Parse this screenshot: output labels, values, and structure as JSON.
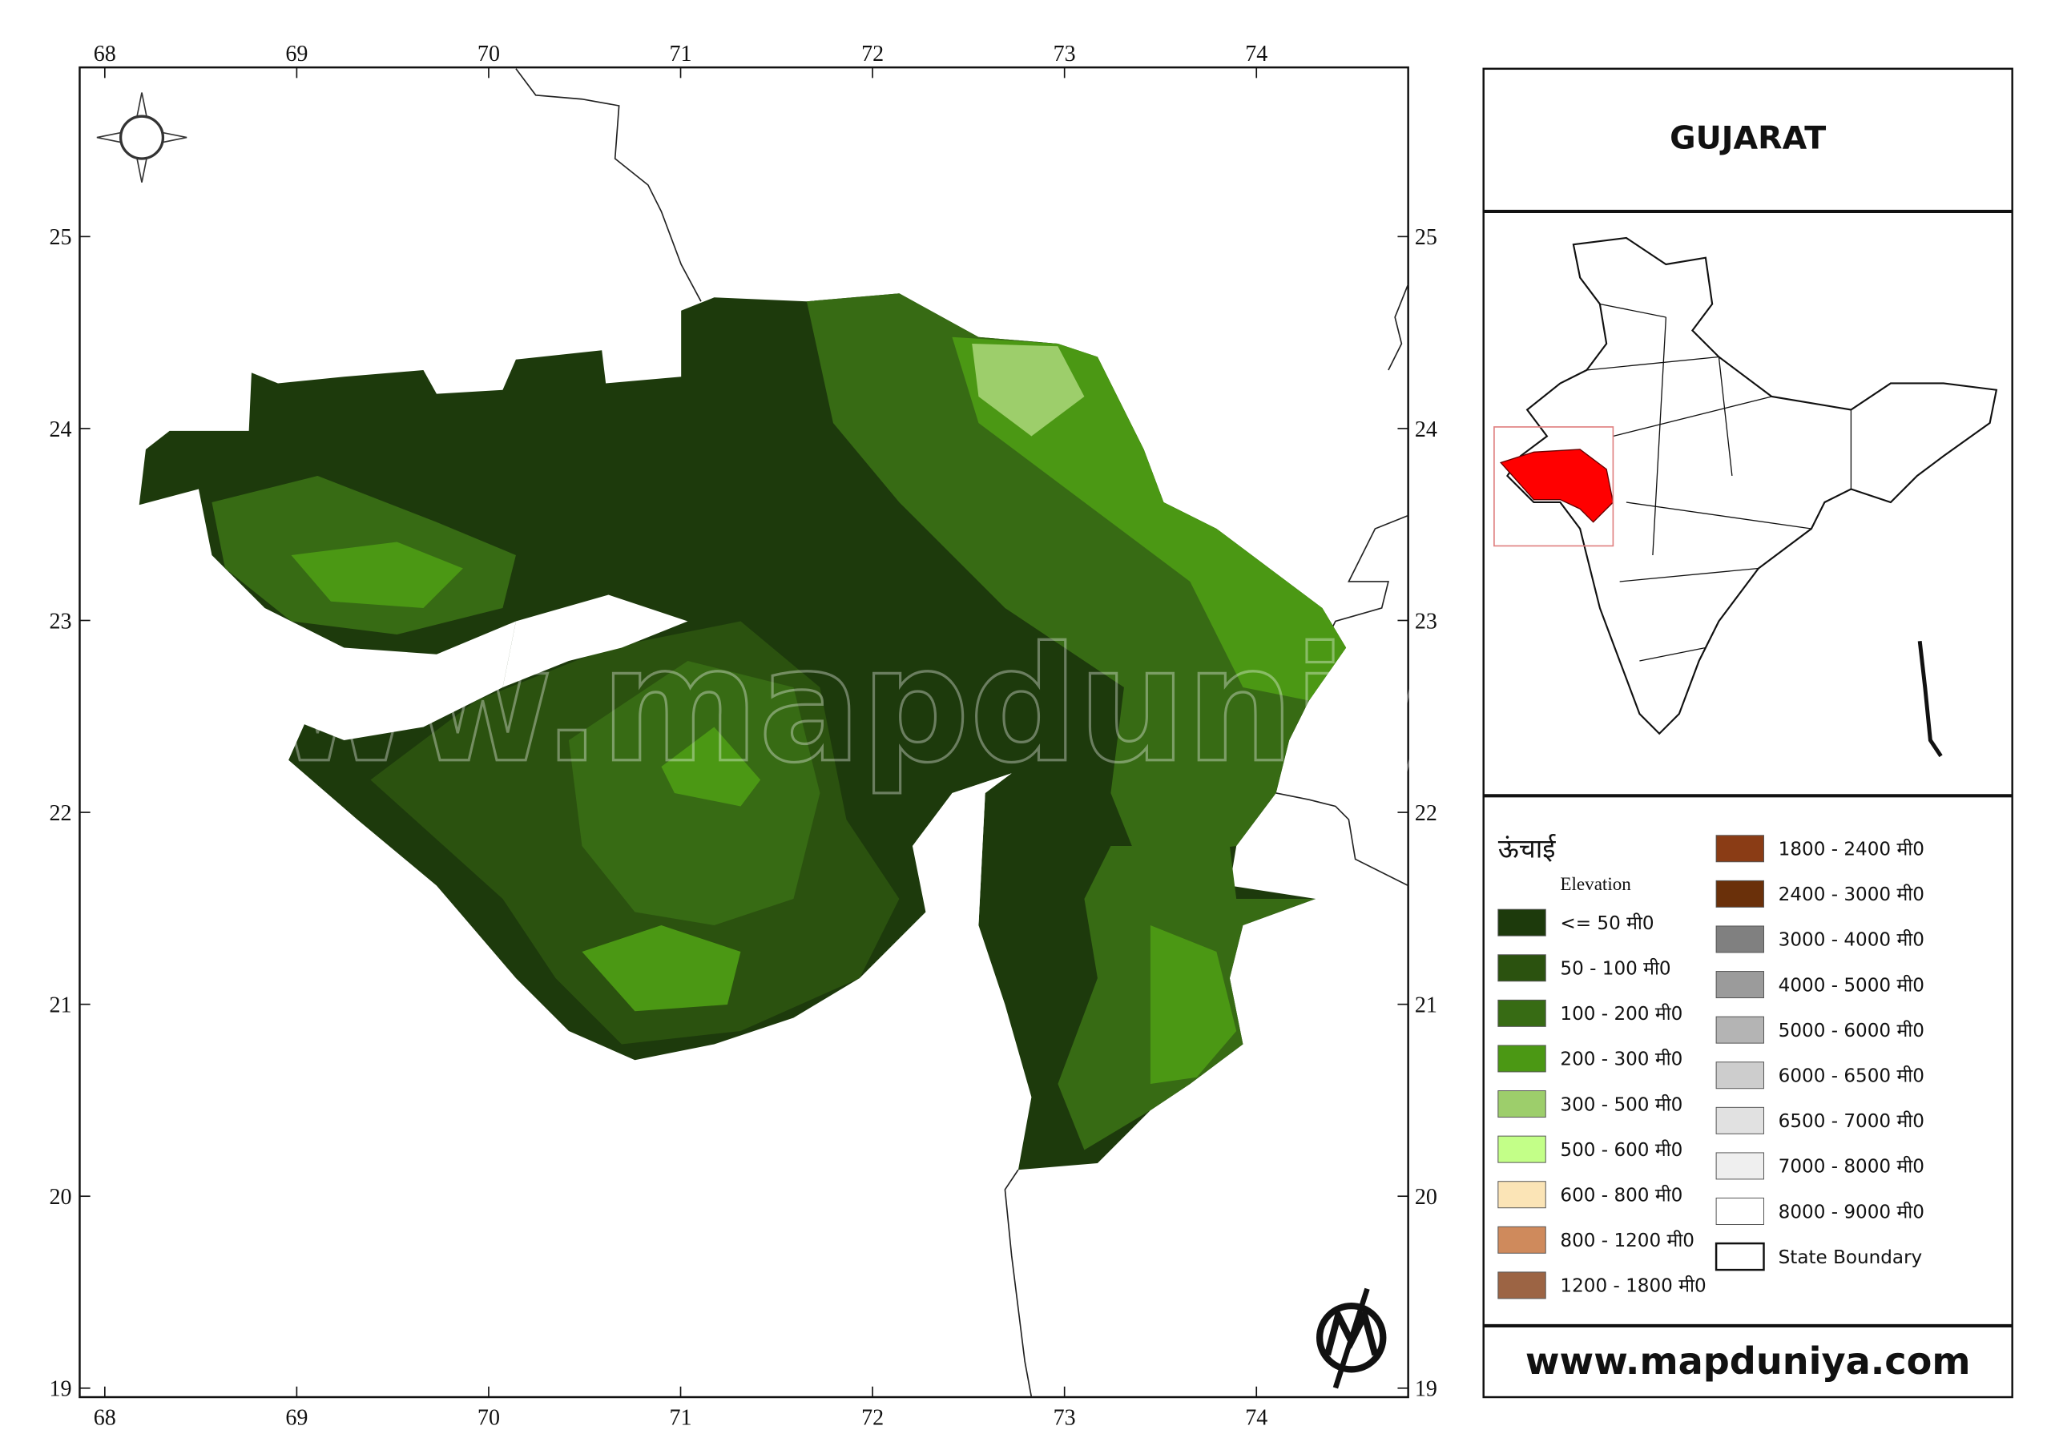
{
  "header": {
    "title": "GUJARAT"
  },
  "axes": {
    "longitude_ticks": [
      68,
      69,
      70,
      71,
      72,
      73,
      74
    ],
    "latitude_ticks": [
      19,
      20,
      21,
      22,
      23,
      24,
      25
    ]
  },
  "legend": {
    "title": "ऊंचाई",
    "subtitle": "Elevation",
    "items": [
      {
        "label": "<= 50 मी0",
        "color": "#1d3a0c"
      },
      {
        "label": "50 - 100 मी0",
        "color": "#2b520f"
      },
      {
        "label": "100 - 200 मी0",
        "color": "#376b14"
      },
      {
        "label": "200 - 300 मी0",
        "color": "#4b9814"
      },
      {
        "label": "300 - 500 मी0",
        "color": "#9dce6b"
      },
      {
        "label": "500 - 600 मी0",
        "color": "#c3ff88"
      },
      {
        "label": "600 - 800 मी0",
        "color": "#fbe4b6"
      },
      {
        "label": "800 - 1200 मी0",
        "color": "#cf8a5c"
      },
      {
        "label": "1200 - 1800 मी0",
        "color": "#9c6444"
      },
      {
        "label": "1800 - 2400 मी0",
        "color": "#8a3c15"
      },
      {
        "label": "2400 - 3000 मी0",
        "color": "#6a300a"
      },
      {
        "label": "3000 - 4000 मी0",
        "color": "#808080"
      },
      {
        "label": "4000 - 5000 मी0",
        "color": "#9b9b9b"
      },
      {
        "label": "5000 - 6000 मी0",
        "color": "#b4b4b4"
      },
      {
        "label": "6000 - 6500 मी0",
        "color": "#cdcdcd"
      },
      {
        "label": "6500 - 7000 मी0",
        "color": "#e1e1e1"
      },
      {
        "label": "7000 - 8000 मी0",
        "color": "#efefef"
      },
      {
        "label": "8000 - 9000 मी0",
        "color": "#ffffff"
      }
    ],
    "boundary_label": "State Boundary"
  },
  "watermark": "www.mapduniya.com",
  "footer": {
    "website": "www.mapduniya.com"
  }
}
